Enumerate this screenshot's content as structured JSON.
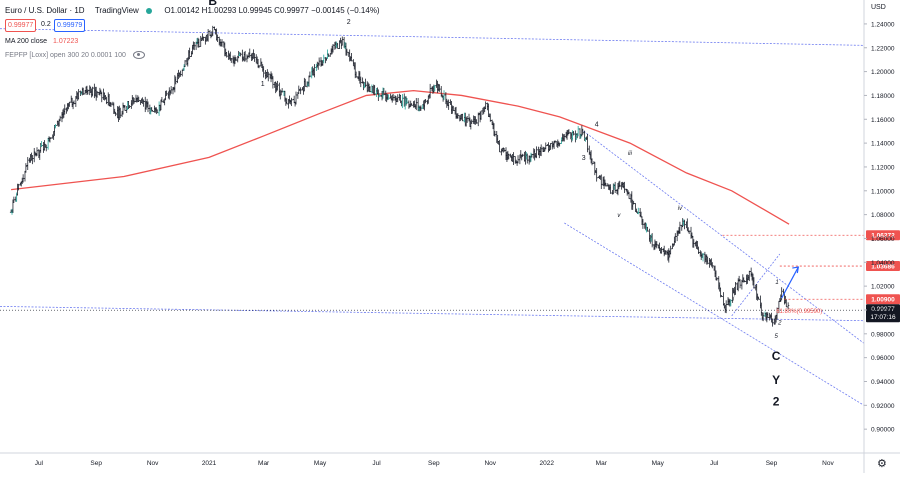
{
  "header": {
    "symbol_title": "Euro / U.S. Dollar · 1D",
    "brand": "TradingView",
    "ohlc_text": "O1.00142 H1.00293 L0.99945 C0.99977 −0.00145 (−0.14%)",
    "sell_price": "0.99977",
    "spread": "0.2",
    "buy_price": "0.99979",
    "ma_label": "MA 200 close",
    "ma_value": "1.07223",
    "fpfp_label": "FEPFP [Loxx] open 300 20 0.0001 100",
    "currency": "USD"
  },
  "colors": {
    "candle_up": "#26a69a",
    "candle_bar": "#1e222d",
    "ma": "#ef5350",
    "channel": "#6e7cf0",
    "accent": "#2962ff"
  },
  "chart_data": {
    "type": "line",
    "title": "Euro / U.S. Dollar · 1D",
    "xlabel": "",
    "ylabel": "",
    "ylim": [
      0.88,
      1.25
    ],
    "y_ticks": [
      "1.24000",
      "1.22000",
      "1.20000",
      "1.18000",
      "1.16000",
      "1.14000",
      "1.12000",
      "1.10000",
      "1.08000",
      "1.06000",
      "1.04000",
      "1.02000",
      "1.00000",
      "0.98000",
      "0.96000",
      "0.94000",
      "0.92000",
      "0.90000"
    ],
    "x_ticks": [
      "Jul",
      "Sep",
      "Nov",
      "2021",
      "Mar",
      "May",
      "Jul",
      "Sep",
      "Nov",
      "2022",
      "Mar",
      "May",
      "Jul",
      "Sep",
      "Nov"
    ],
    "series": [
      {
        "kind": "price",
        "x": [
          "2020-06-01",
          "2020-06-20",
          "2020-07-10",
          "2020-07-31",
          "2020-08-20",
          "2020-09-10",
          "2020-09-25",
          "2020-10-15",
          "2020-11-04",
          "2020-11-25",
          "2020-12-15",
          "2021-01-06",
          "2021-01-25",
          "2021-02-15",
          "2021-03-08",
          "2021-03-31",
          "2021-04-20",
          "2021-05-10",
          "2021-05-25",
          "2021-06-15",
          "2021-06-30",
          "2021-07-15",
          "2021-08-01",
          "2021-08-20",
          "2021-09-03",
          "2021-09-25",
          "2021-10-12",
          "2021-10-28",
          "2021-11-12",
          "2021-11-24",
          "2021-12-15",
          "2022-01-05",
          "2022-01-20",
          "2022-02-10",
          "2022-02-24",
          "2022-03-10",
          "2022-03-25",
          "2022-04-10",
          "2022-04-27",
          "2022-05-12",
          "2022-05-30",
          "2022-06-14",
          "2022-06-28",
          "2022-07-14",
          "2022-07-25",
          "2022-08-10",
          "2022-08-23",
          "2022-09-05",
          "2022-09-12",
          "2022-09-20"
        ],
        "values": [
          1.082,
          1.125,
          1.14,
          1.17,
          1.185,
          1.18,
          1.165,
          1.178,
          1.165,
          1.19,
          1.22,
          1.234,
          1.21,
          1.215,
          1.195,
          1.172,
          1.195,
          1.215,
          1.225,
          1.19,
          1.183,
          1.18,
          1.175,
          1.17,
          1.19,
          1.165,
          1.155,
          1.17,
          1.135,
          1.125,
          1.13,
          1.138,
          1.145,
          1.15,
          1.115,
          1.1,
          1.105,
          1.08,
          1.055,
          1.045,
          1.075,
          1.05,
          1.04,
          1.0,
          1.02,
          1.03,
          0.995,
          0.99,
          1.015,
          0.9998
        ]
      },
      {
        "kind": "ma200",
        "name": "MA 200 close",
        "x": [
          "2020-06-01",
          "2020-10-01",
          "2021-01-01",
          "2021-03-01",
          "2021-05-01",
          "2021-06-20",
          "2021-08-10",
          "2021-10-01",
          "2021-12-01",
          "2022-01-15",
          "2022-04-01",
          "2022-06-01",
          "2022-07-20",
          "2022-09-20"
        ],
        "values": [
          1.101,
          1.112,
          1.128,
          1.146,
          1.165,
          1.18,
          1.184,
          1.18,
          1.171,
          1.162,
          1.14,
          1.115,
          1.1,
          1.072
        ]
      }
    ],
    "levels": [
      {
        "name": "level_1",
        "value": 1.06272,
        "label": "1.06272",
        "color": "#ef5350"
      },
      {
        "name": "level_2",
        "value": 1.03686,
        "label": "1.03686",
        "color": "#ef5350"
      },
      {
        "name": "level_3",
        "value": 1.009,
        "label": "1.00900",
        "color": "#ef5350"
      }
    ],
    "price_badge": {
      "value": "0.99977",
      "time": "17:07:16"
    },
    "fib_label": "61.80%(0.99590)",
    "wave_labels": [
      {
        "text": "B",
        "bold": true
      },
      {
        "text": "1"
      },
      {
        "text": "2"
      },
      {
        "text": "3"
      },
      {
        "text": "4"
      },
      {
        "text": "iii"
      },
      {
        "text": "iv"
      },
      {
        "text": "ii"
      },
      {
        "text": "v"
      },
      {
        "text": "i"
      },
      {
        "text": "1"
      },
      {
        "text": "2"
      },
      {
        "text": "5"
      },
      {
        "text": "C",
        "bold": true
      },
      {
        "text": "Y",
        "bold": true
      },
      {
        "text": "2",
        "bold": true
      }
    ]
  }
}
